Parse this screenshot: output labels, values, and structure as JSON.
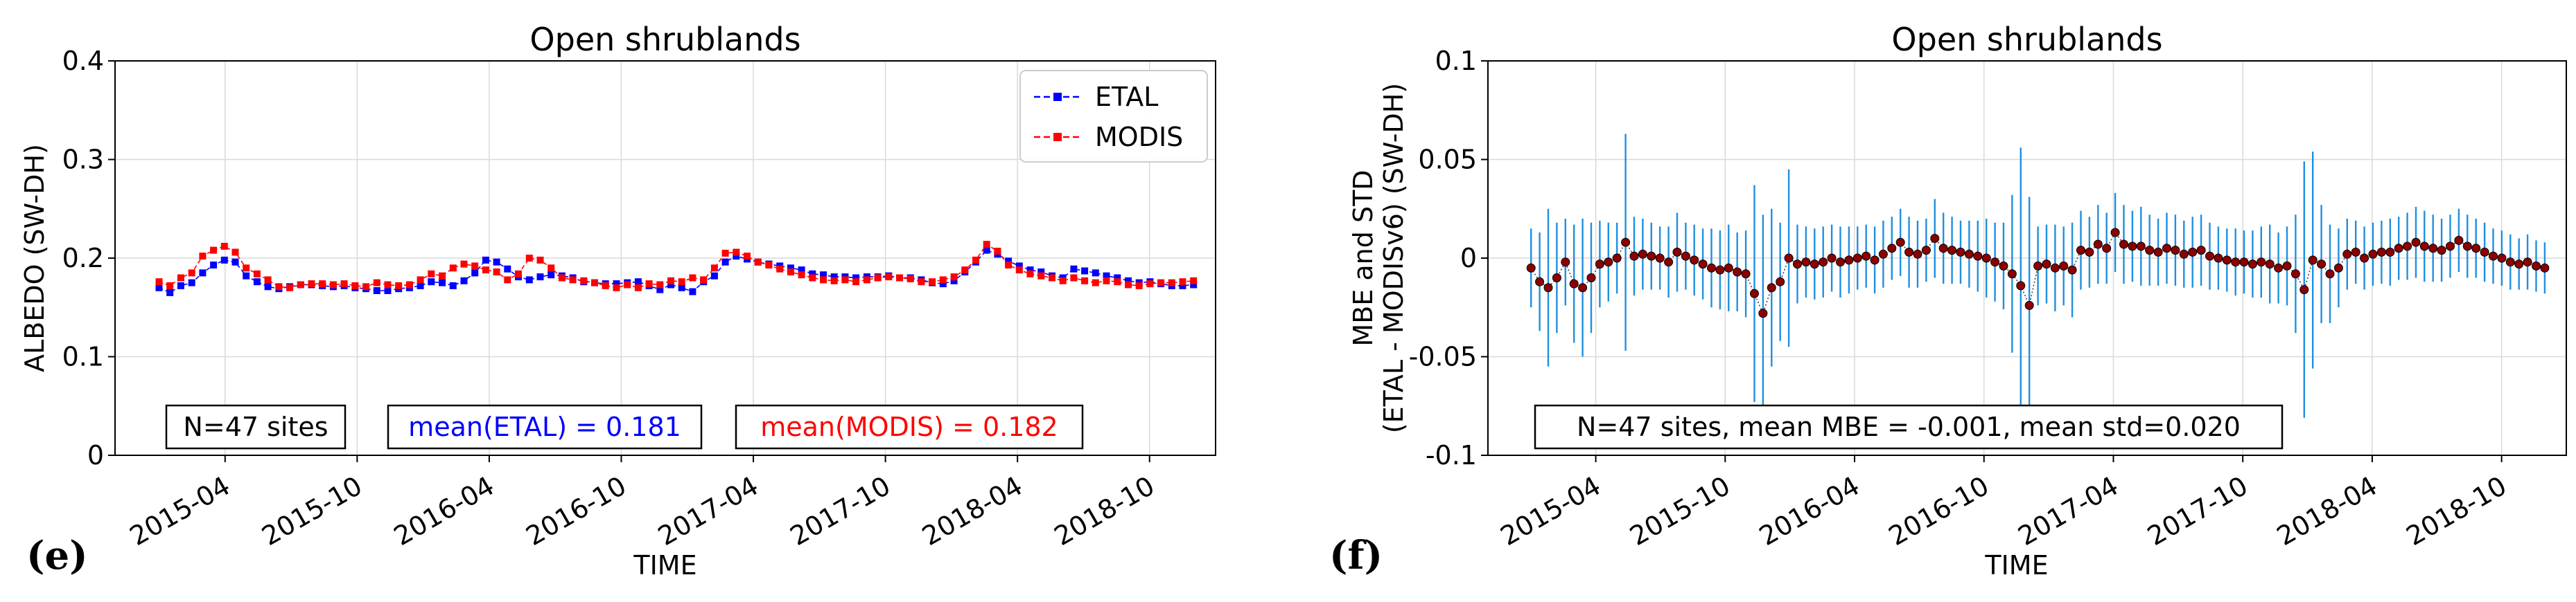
{
  "panels": [
    {
      "label": "(e)",
      "title": "Open shrublands",
      "xlabel": "TIME",
      "ylabel": "ALBEDO (SW-DH)",
      "ytick_labels": [
        "0",
        "0.1",
        "0.2",
        "0.3",
        "0.4"
      ],
      "xtick_labels": [
        "2015-04",
        "2015-10",
        "2016-04",
        "2016-10",
        "2017-04",
        "2017-10",
        "2018-04",
        "2018-10"
      ],
      "legend": [
        "ETAL",
        "MODIS"
      ],
      "annotations": [
        "N=47 sites",
        "mean(ETAL) = 0.181",
        "mean(MODIS) = 0.182"
      ]
    },
    {
      "label": "(f)",
      "title": "Open shrublands",
      "xlabel": "TIME",
      "ylabel_line1": "MBE and STD",
      "ylabel_line2": "(ETAL - MODISv6) (SW-DH)",
      "ytick_labels": [
        "-0.1",
        "-0.05",
        "0",
        "0.05",
        "0.1"
      ],
      "xtick_labels": [
        "2015-04",
        "2015-10",
        "2016-04",
        "2016-10",
        "2017-04",
        "2017-10",
        "2018-04",
        "2018-10"
      ],
      "annotations": [
        "N=47 sites, mean MBE = -0.001, mean std=0.020"
      ]
    }
  ],
  "colors": {
    "etal": "#0000ff",
    "modis": "#ff0000",
    "errorbar": "#1f8fe0",
    "mbe_marker": "#8b0000",
    "grid": "#d9d9d9"
  },
  "chart_data": [
    {
      "type": "line",
      "title": "Open shrublands",
      "xlabel": "TIME",
      "ylabel": "ALBEDO (SW-DH)",
      "x_start": "2015-01",
      "x_end": "2018-12",
      "xlim": [
        "2014-11",
        "2019-01"
      ],
      "ylim": [
        0,
        0.4
      ],
      "grid": true,
      "legend_position": "top-right",
      "series": [
        {
          "name": "ETAL",
          "style": "dashed line with square markers",
          "color": "#0000ff",
          "values": [
            0.17,
            0.165,
            0.172,
            0.175,
            0.185,
            0.193,
            0.198,
            0.196,
            0.182,
            0.176,
            0.171,
            0.169,
            0.171,
            0.173,
            0.173,
            0.172,
            0.171,
            0.172,
            0.17,
            0.169,
            0.167,
            0.167,
            0.169,
            0.17,
            0.172,
            0.176,
            0.175,
            0.172,
            0.177,
            0.185,
            0.198,
            0.196,
            0.189,
            0.181,
            0.178,
            0.181,
            0.183,
            0.182,
            0.18,
            0.176,
            0.175,
            0.174,
            0.174,
            0.175,
            0.176,
            0.172,
            0.168,
            0.173,
            0.17,
            0.166,
            0.176,
            0.182,
            0.196,
            0.202,
            0.199,
            0.196,
            0.194,
            0.192,
            0.19,
            0.188,
            0.184,
            0.183,
            0.181,
            0.181,
            0.18,
            0.181,
            0.181,
            0.182,
            0.18,
            0.18,
            0.178,
            0.175,
            0.174,
            0.177,
            0.186,
            0.196,
            0.208,
            0.204,
            0.197,
            0.192,
            0.188,
            0.186,
            0.182,
            0.18,
            0.189,
            0.187,
            0.185,
            0.182,
            0.18,
            0.177,
            0.175,
            0.176,
            0.174,
            0.172,
            0.172,
            0.173
          ]
        },
        {
          "name": "MODIS",
          "style": "dashed line with square markers",
          "color": "#ff0000",
          "values": [
            0.176,
            0.172,
            0.18,
            0.185,
            0.202,
            0.208,
            0.212,
            0.206,
            0.19,
            0.184,
            0.178,
            0.171,
            0.17,
            0.173,
            0.174,
            0.174,
            0.173,
            0.174,
            0.172,
            0.171,
            0.175,
            0.173,
            0.172,
            0.173,
            0.178,
            0.184,
            0.182,
            0.19,
            0.194,
            0.192,
            0.188,
            0.186,
            0.178,
            0.184,
            0.2,
            0.198,
            0.19,
            0.18,
            0.178,
            0.177,
            0.175,
            0.172,
            0.17,
            0.173,
            0.17,
            0.174,
            0.173,
            0.177,
            0.176,
            0.18,
            0.178,
            0.19,
            0.205,
            0.206,
            0.202,
            0.196,
            0.193,
            0.189,
            0.186,
            0.183,
            0.18,
            0.178,
            0.177,
            0.178,
            0.176,
            0.178,
            0.18,
            0.181,
            0.18,
            0.179,
            0.176,
            0.176,
            0.178,
            0.181,
            0.188,
            0.198,
            0.214,
            0.207,
            0.193,
            0.188,
            0.184,
            0.182,
            0.18,
            0.177,
            0.18,
            0.177,
            0.175,
            0.177,
            0.176,
            0.173,
            0.172,
            0.174,
            0.175,
            0.175,
            0.176,
            0.177
          ]
        }
      ]
    },
    {
      "type": "scatter",
      "title": "Open shrublands",
      "xlabel": "TIME",
      "ylabel": "MBE and STD (ETAL - MODISv6) (SW-DH)",
      "x_start": "2015-01",
      "x_end": "2018-12",
      "xlim": [
        "2014-11",
        "2019-01"
      ],
      "ylim": [
        -0.1,
        0.1
      ],
      "grid": true,
      "series": [
        {
          "name": "",
          "style": "dark red circle markers, dotted line, blue error bars",
          "mbe": [
            -0.005,
            -0.012,
            -0.015,
            -0.01,
            -0.002,
            -0.013,
            -0.015,
            -0.01,
            -0.003,
            -0.002,
            0.0,
            0.008,
            0.001,
            0.002,
            0.001,
            0.0,
            -0.002,
            0.003,
            0.001,
            -0.001,
            -0.003,
            -0.005,
            -0.006,
            -0.005,
            -0.007,
            -0.008,
            -0.018,
            -0.028,
            -0.015,
            -0.012,
            0.0,
            -0.003,
            -0.002,
            -0.003,
            -0.002,
            0.0,
            -0.002,
            -0.001,
            0.0,
            0.001,
            -0.001,
            0.002,
            0.005,
            0.008,
            0.003,
            0.002,
            0.004,
            0.01,
            0.005,
            0.004,
            0.003,
            0.002,
            0.001,
            0.0,
            -0.002,
            -0.004,
            -0.008,
            -0.014,
            -0.024,
            -0.004,
            -0.003,
            -0.005,
            -0.004,
            -0.006,
            0.004,
            0.003,
            0.007,
            0.005,
            0.013,
            0.007,
            0.006,
            0.006,
            0.004,
            0.003,
            0.005,
            0.004,
            0.002,
            0.003,
            0.004,
            0.001,
            0.0,
            -0.001,
            -0.002,
            -0.002,
            -0.003,
            -0.002,
            -0.003,
            -0.005,
            -0.004,
            -0.008,
            -0.016,
            -0.001,
            -0.003,
            -0.008,
            -0.005,
            0.002,
            0.003,
            0.0,
            0.002,
            0.003,
            0.003,
            0.005,
            0.006,
            0.008,
            0.006,
            0.005,
            0.004,
            0.006,
            0.009,
            0.006,
            0.005,
            0.003,
            0.001,
            0.0,
            -0.002,
            -0.003,
            -0.002,
            -0.004,
            -0.005
          ],
          "std": [
            0.02,
            0.025,
            0.04,
            0.028,
            0.022,
            0.03,
            0.035,
            0.028,
            0.022,
            0.02,
            0.018,
            0.055,
            0.02,
            0.018,
            0.017,
            0.016,
            0.018,
            0.02,
            0.017,
            0.018,
            0.018,
            0.02,
            0.02,
            0.022,
            0.02,
            0.022,
            0.055,
            0.05,
            0.04,
            0.03,
            0.045,
            0.02,
            0.018,
            0.018,
            0.018,
            0.017,
            0.018,
            0.017,
            0.016,
            0.016,
            0.017,
            0.017,
            0.016,
            0.017,
            0.018,
            0.017,
            0.016,
            0.02,
            0.018,
            0.017,
            0.016,
            0.017,
            0.018,
            0.02,
            0.02,
            0.022,
            0.04,
            0.07,
            0.055,
            0.02,
            0.02,
            0.022,
            0.02,
            0.024,
            0.02,
            0.018,
            0.02,
            0.018,
            0.02,
            0.02,
            0.018,
            0.02,
            0.018,
            0.017,
            0.018,
            0.018,
            0.017,
            0.018,
            0.018,
            0.017,
            0.016,
            0.016,
            0.017,
            0.016,
            0.017,
            0.018,
            0.02,
            0.018,
            0.02,
            0.03,
            0.065,
            0.055,
            0.03,
            0.025,
            0.02,
            0.018,
            0.016,
            0.016,
            0.016,
            0.016,
            0.017,
            0.016,
            0.017,
            0.018,
            0.018,
            0.017,
            0.016,
            0.016,
            0.016,
            0.016,
            0.015,
            0.015,
            0.014,
            0.014,
            0.014,
            0.013,
            0.014,
            0.013,
            0.013
          ]
        }
      ],
      "annotation": "N=47 sites, mean MBE = -0.001, mean std=0.020"
    }
  ]
}
